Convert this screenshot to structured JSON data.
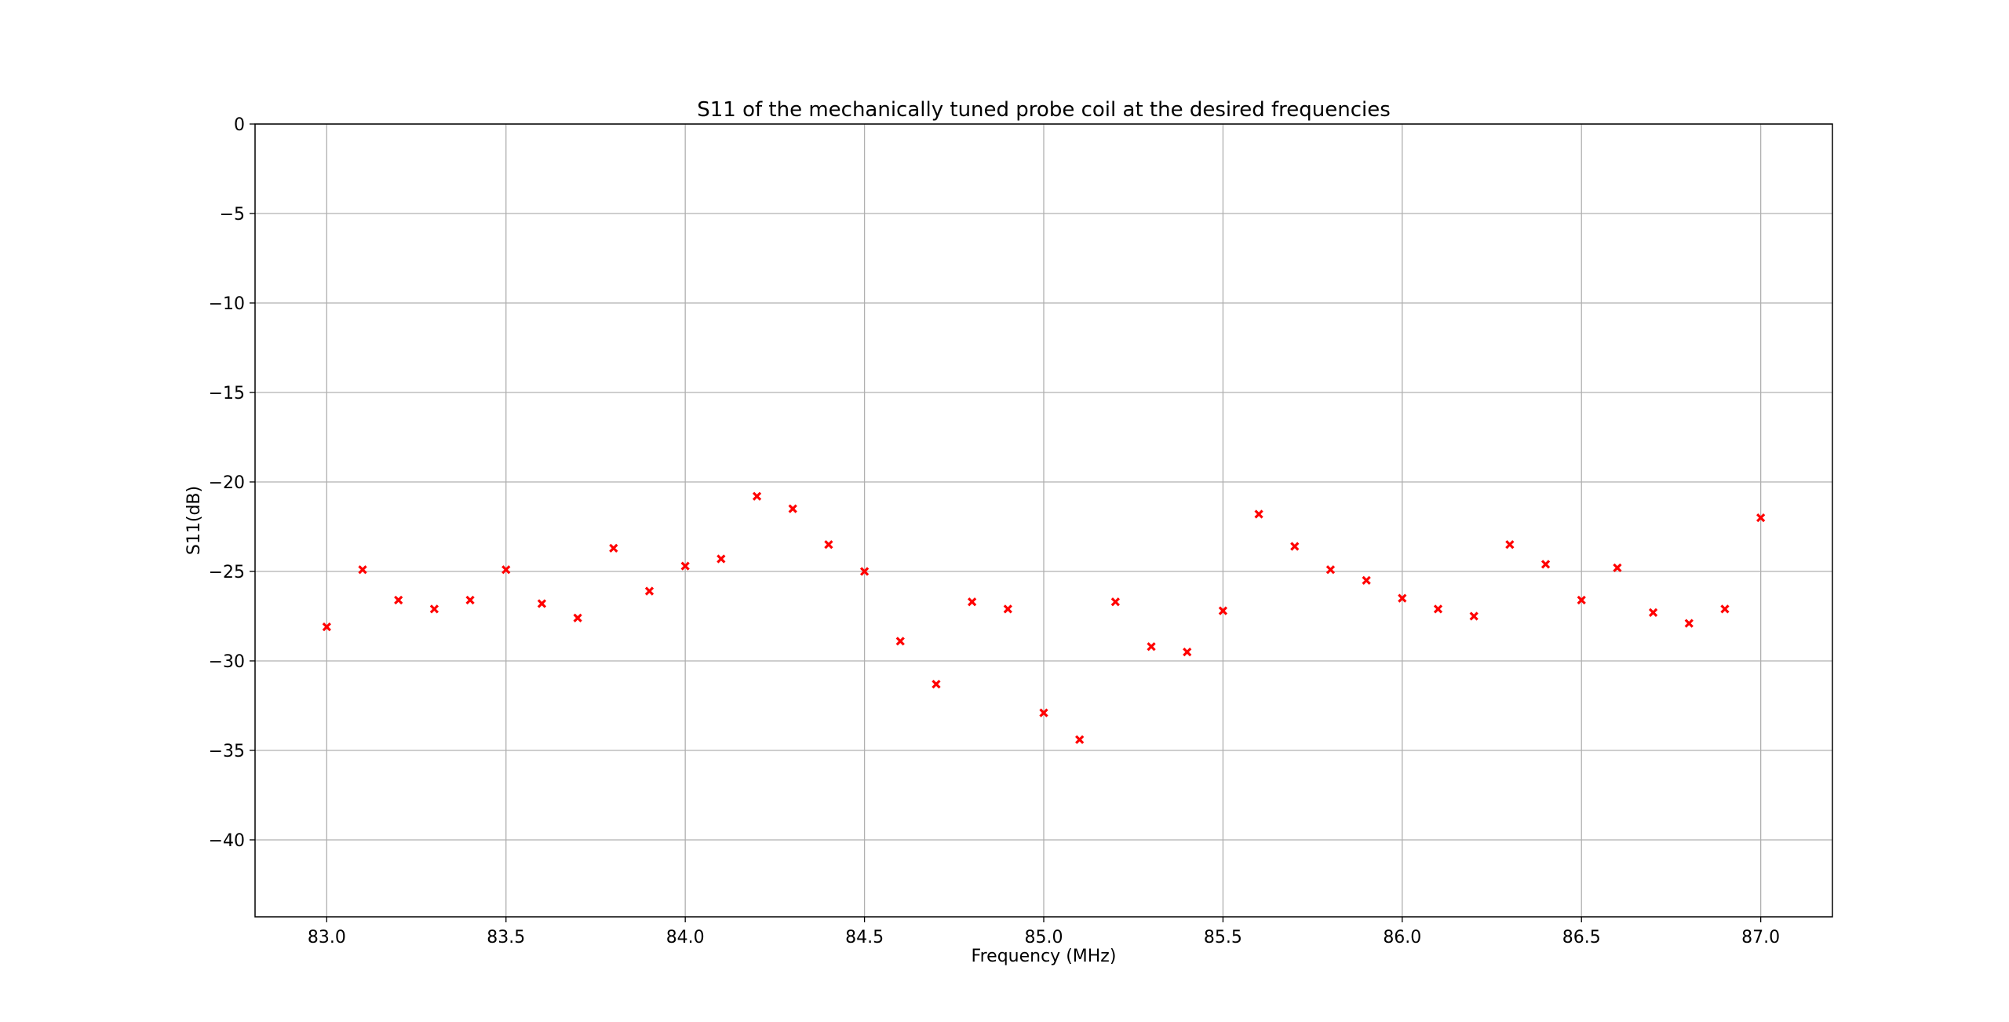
{
  "chart_data": {
    "type": "scatter",
    "title": "S11 of the mechanically tuned probe coil at the desired frequencies",
    "xlabel": "Frequency (MHz)",
    "ylabel": "S11(dB)",
    "xlim": [
      82.8,
      87.2
    ],
    "ylim": [
      -44.3,
      0
    ],
    "xticks": [
      "83.0",
      "83.5",
      "84.0",
      "84.5",
      "85.0",
      "85.5",
      "86.0",
      "86.5",
      "87.0"
    ],
    "yticks": [
      "0",
      "−5",
      "−10",
      "−15",
      "−20",
      "−25",
      "−30",
      "−35",
      "−40"
    ],
    "grid": true,
    "marker": "x",
    "marker_color": "#ff0000",
    "x": [
      83.0,
      83.1,
      83.2,
      83.3,
      83.4,
      83.5,
      83.6,
      83.7,
      83.8,
      83.9,
      84.0,
      84.1,
      84.2,
      84.3,
      84.4,
      84.5,
      84.6,
      84.7,
      84.8,
      84.9,
      85.0,
      85.1,
      85.2,
      85.3,
      85.4,
      85.5,
      85.6,
      85.7,
      85.8,
      85.9,
      86.0,
      86.1,
      86.2,
      86.3,
      86.4,
      86.5,
      86.6,
      86.7,
      86.8,
      86.9,
      87.0
    ],
    "y": [
      -28.1,
      -24.9,
      -26.6,
      -27.1,
      -26.6,
      -24.9,
      -26.8,
      -27.6,
      -23.7,
      -26.1,
      -24.7,
      -24.3,
      -20.8,
      -21.5,
      -23.5,
      -25.0,
      -28.9,
      -31.3,
      -26.7,
      -27.1,
      -32.9,
      -34.4,
      -26.7,
      -29.2,
      -29.5,
      -27.2,
      -21.8,
      -23.6,
      -24.9,
      -25.5,
      -26.5,
      -27.1,
      -27.5,
      -23.5,
      -24.6,
      -26.6,
      -24.8,
      -27.3,
      -27.9,
      -27.1,
      -22.0
    ]
  }
}
